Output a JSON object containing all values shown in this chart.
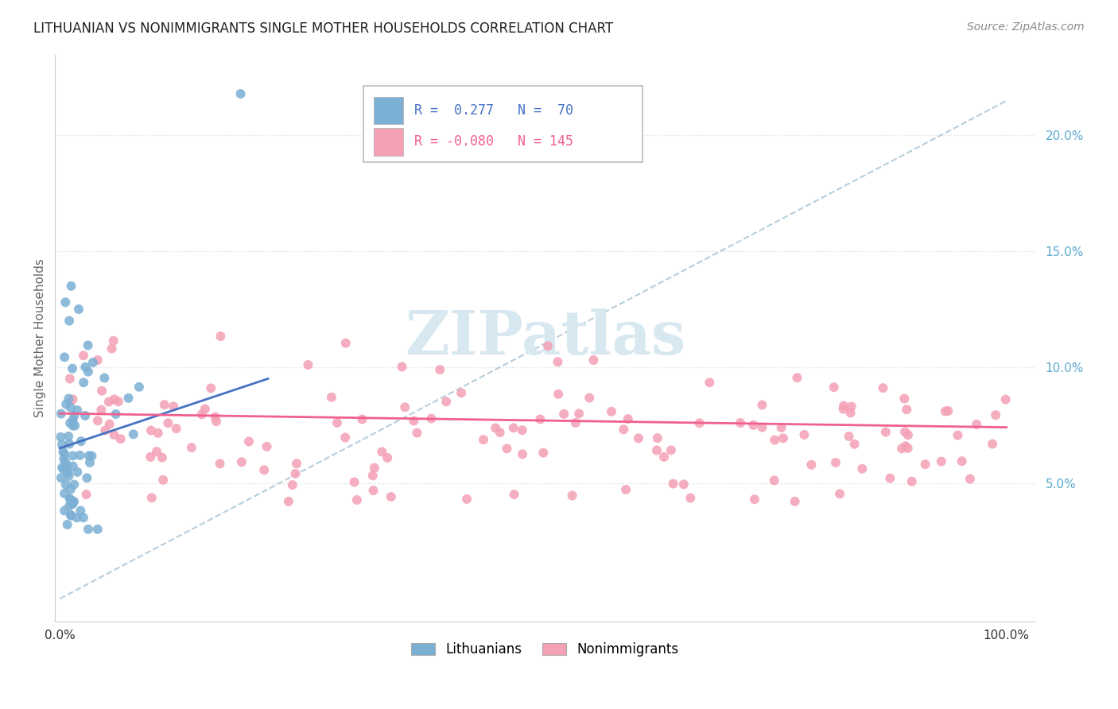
{
  "title": "LITHUANIAN VS NONIMMIGRANTS SINGLE MOTHER HOUSEHOLDS CORRELATION CHART",
  "source": "Source: ZipAtlas.com",
  "ylabel": "Single Mother Households",
  "blue_color": "#7BAFD4",
  "pink_color": "#F4A0B5",
  "blue_line_color": "#4472C4",
  "pink_line_color": "#F06090",
  "dash_line_color": "#B0C8D8",
  "watermark_color": "#D8E8F0",
  "ytick_color": "#5BAAD0",
  "title_color": "#222222",
  "source_color": "#888888",
  "legend_box_color": "#CCCCCC",
  "r1_text": "R =  0.277   N =  70",
  "r2_text": "R = -0.080   N = 145",
  "legend_blue_label": "Lithuanians",
  "legend_pink_label": "Nonimmigrants"
}
